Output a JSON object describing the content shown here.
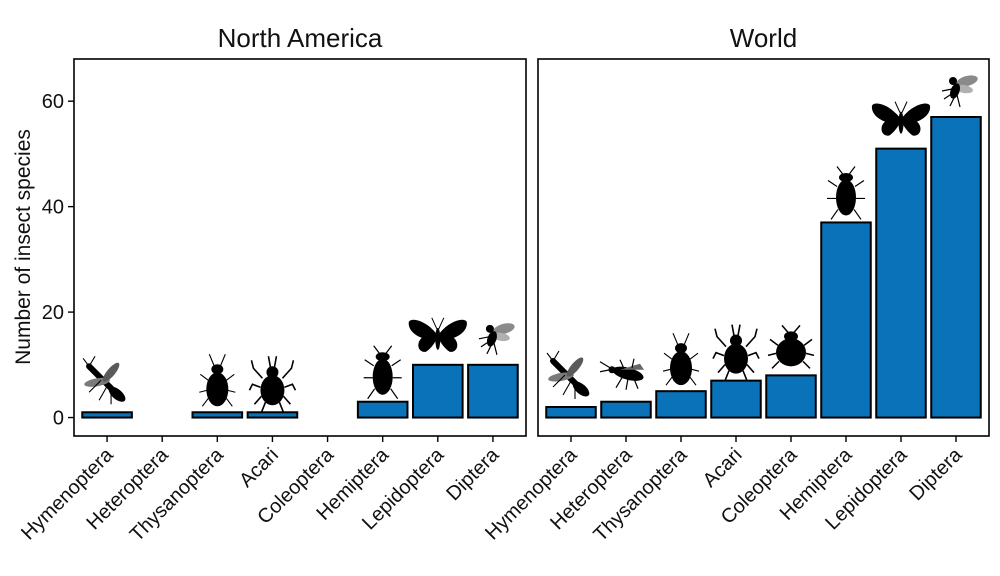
{
  "chart_data": {
    "type": "bar",
    "ylabel": "Number of insect species",
    "ylim": [
      -3.5,
      68
    ],
    "yticks": [
      0,
      20,
      40,
      60
    ],
    "grid": false,
    "bar_color": "#0A72B8",
    "categories": [
      "Hymenoptera",
      "Heteroptera",
      "Thysanoptera",
      "Acari",
      "Coleoptera",
      "Hemiptera",
      "Lepidoptera",
      "Diptera"
    ],
    "panels": [
      {
        "title": "North America",
        "values": [
          1,
          0,
          1,
          1,
          0,
          3,
          10,
          10
        ],
        "icons": [
          "wasp-icon",
          "",
          "thrips-icon",
          "mite-icon",
          "",
          "hemipteran-bug-icon",
          "moth-icon",
          "fly-icon"
        ]
      },
      {
        "title": "World",
        "values": [
          2,
          3,
          5,
          7,
          8,
          37,
          51,
          57
        ],
        "icons": [
          "wasp-icon",
          "heteropteran-bug-icon",
          "thrips-icon",
          "mite-icon",
          "beetle-icon",
          "hemipteran-bug-icon",
          "moth-icon",
          "fly-icon"
        ]
      }
    ]
  }
}
